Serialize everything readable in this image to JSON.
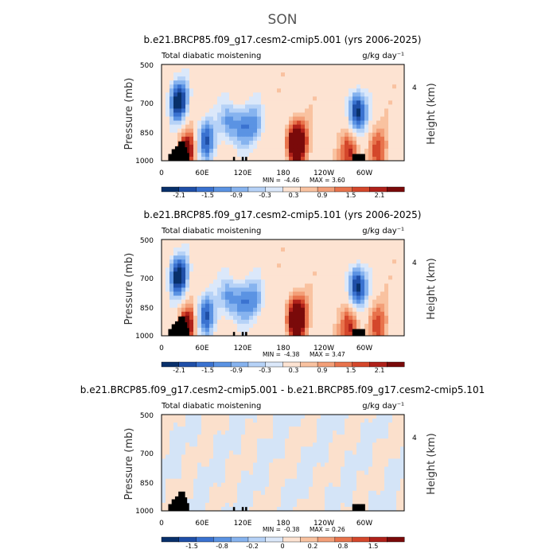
{
  "page_title": "SON",
  "colors": {
    "ramp": [
      "#08306b",
      "#1f4fa8",
      "#3a72d0",
      "#5b93e3",
      "#86b3ef",
      "#b6d2f7",
      "#dbe8fa",
      "#fde3d2",
      "#f9c2a0",
      "#f39f78",
      "#e8734c",
      "#d4472b",
      "#b0211a",
      "#7a0a0a"
    ],
    "land": "#000000",
    "pos": "#fbe0cc",
    "neg": "#d4e4f7"
  },
  "chart_data": [
    {
      "type": "heatmap",
      "title": "b.e21.BRCP85.f09_g17.cesm2-cmip5.001 (yrs 2006-2025)",
      "left_label": "Total diabatic moistening",
      "right_label": "g/kg day⁻¹",
      "xlabel": "",
      "ylabel": "Pressure (mb)",
      "y2label": "Height (km)",
      "x_ticks": [
        "0",
        "60E",
        "120E",
        "180",
        "120W",
        "60W"
      ],
      "y_ticks": [
        "500",
        "700",
        "850",
        "1000"
      ],
      "y2_ticks": [
        "4"
      ],
      "min_label": "MIN =",
      "min_value": "-4.46",
      "max_label": "MAX =",
      "max_value": "3.60",
      "min": -4.46,
      "max": 3.6,
      "colorbar_labels": [
        "-2.1",
        "-1.5",
        "-0.9",
        "-0.3",
        "0.3",
        "0.9",
        "1.5",
        "2.1"
      ],
      "features": [
        {
          "lon": 25,
          "p": 650,
          "v": -2.4
        },
        {
          "lon": 38,
          "p": 930,
          "v": 1.9
        },
        {
          "lon": 65,
          "p": 860,
          "v": -1.8
        },
        {
          "lon": 100,
          "p": 760,
          "v": -1.4
        },
        {
          "lon": 120,
          "p": 780,
          "v": -1.2
        },
        {
          "lon": 140,
          "p": 770,
          "v": -1.0
        },
        {
          "lon": 200,
          "p": 880,
          "v": 3.2
        },
        {
          "lon": 290,
          "p": 700,
          "v": -2.4
        },
        {
          "lon": 280,
          "p": 950,
          "v": 1.6
        },
        {
          "lon": 320,
          "p": 920,
          "v": 1.2
        }
      ]
    },
    {
      "type": "heatmap",
      "title": "b.e21.BRCP85.f09_g17.cesm2-cmip5.101 (yrs 2006-2025)",
      "left_label": "Total diabatic moistening",
      "right_label": "g/kg day⁻¹",
      "xlabel": "",
      "ylabel": "Pressure (mb)",
      "y2label": "Height (km)",
      "x_ticks": [
        "0",
        "60E",
        "120E",
        "180",
        "120W",
        "60W"
      ],
      "y_ticks": [
        "500",
        "700",
        "850",
        "1000"
      ],
      "y2_ticks": [
        "4"
      ],
      "min_label": "MIN =",
      "min_value": "-4.38",
      "max_label": "MAX =",
      "max_value": "3.47",
      "min": -4.38,
      "max": 3.47,
      "colorbar_labels": [
        "-2.1",
        "-1.5",
        "-0.9",
        "-0.3",
        "0.3",
        "0.9",
        "1.5",
        "2.1"
      ],
      "features": [
        {
          "lon": 25,
          "p": 650,
          "v": -2.4
        },
        {
          "lon": 38,
          "p": 930,
          "v": 1.9
        },
        {
          "lon": 65,
          "p": 860,
          "v": -1.8
        },
        {
          "lon": 100,
          "p": 760,
          "v": -1.4
        },
        {
          "lon": 120,
          "p": 780,
          "v": -1.2
        },
        {
          "lon": 140,
          "p": 770,
          "v": -1.0
        },
        {
          "lon": 200,
          "p": 880,
          "v": 3.1
        },
        {
          "lon": 290,
          "p": 700,
          "v": -2.4
        },
        {
          "lon": 280,
          "p": 950,
          "v": 1.6
        },
        {
          "lon": 320,
          "p": 920,
          "v": 1.2
        }
      ]
    },
    {
      "type": "heatmap",
      "title": "b.e21.BRCP85.f09_g17.cesm2-cmip5.001 - b.e21.BRCP85.f09_g17.cesm2-cmip5.101",
      "left_label": "Total diabatic moistening",
      "right_label": "g/kg day⁻¹",
      "xlabel": "",
      "ylabel": "Pressure (mb)",
      "y2label": "Height (km)",
      "x_ticks": [
        "0",
        "60E",
        "120E",
        "180",
        "120W",
        "60W"
      ],
      "y_ticks": [
        "500",
        "700",
        "850",
        "1000"
      ],
      "y2_ticks": [
        "4"
      ],
      "min_label": "MIN =",
      "min_value": "-0.38",
      "max_label": "MAX =",
      "max_value": "0.26",
      "min": -0.38,
      "max": 0.26,
      "colorbar_labels": [
        "-1.5",
        "-0.8",
        "-0.2",
        "0",
        "0.2",
        "0.8",
        "1.5"
      ],
      "features": []
    }
  ]
}
